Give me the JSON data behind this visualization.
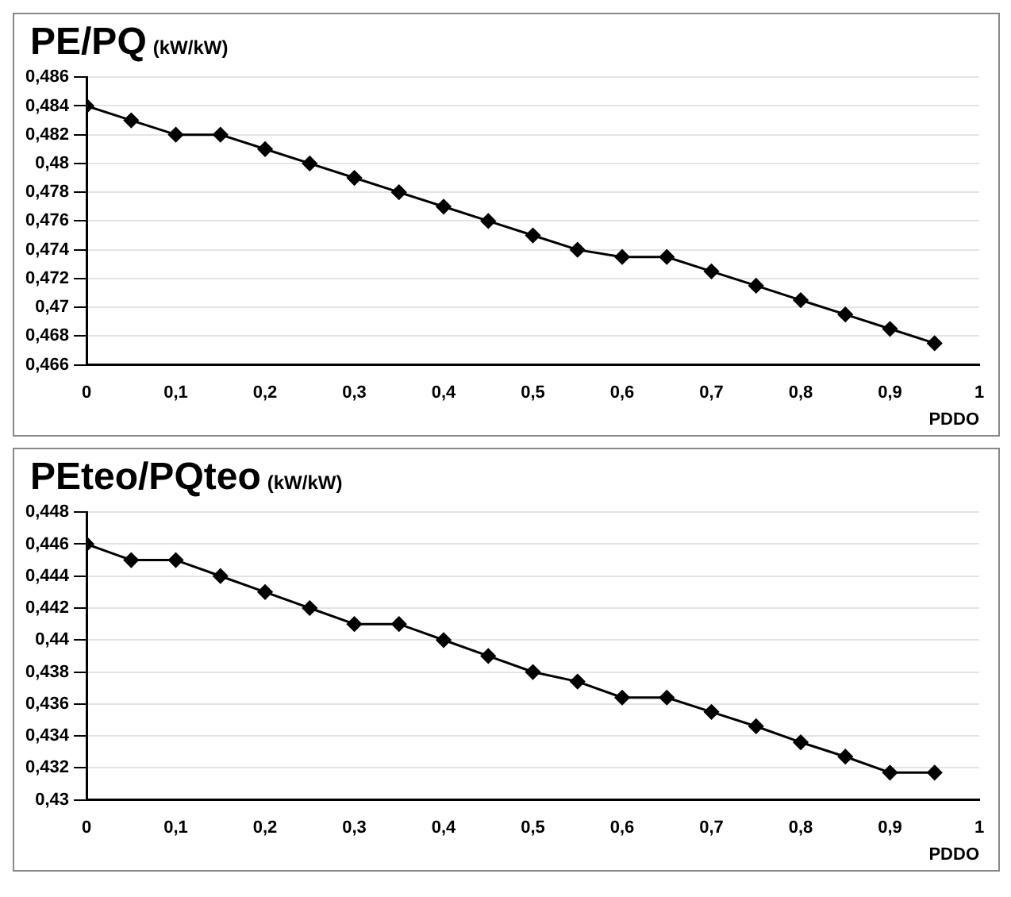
{
  "chart_data": [
    {
      "type": "line",
      "title": "PE/PQ",
      "ylabel": "(kW/kW)",
      "xlabel": "PDDO",
      "x": [
        0,
        0.05,
        0.1,
        0.15,
        0.2,
        0.25,
        0.3,
        0.35,
        0.4,
        0.45,
        0.5,
        0.55,
        0.6,
        0.65,
        0.7,
        0.75,
        0.8,
        0.85,
        0.9,
        0.95
      ],
      "series": [
        {
          "color": "#000000",
          "values": [
            0.484,
            0.483,
            0.482,
            0.482,
            0.481,
            0.48,
            0.479,
            0.478,
            0.477,
            0.476,
            0.475,
            0.474,
            0.4735,
            0.4735,
            0.4725,
            0.4715,
            0.4705,
            0.4695,
            0.4685,
            0.4675
          ]
        }
      ],
      "xlim": [
        0,
        1
      ],
      "xticks": [
        {
          "value": 0,
          "label": "0"
        },
        {
          "value": 0.1,
          "label": "0,1"
        },
        {
          "value": 0.2,
          "label": "0,2"
        },
        {
          "value": 0.3,
          "label": "0,3"
        },
        {
          "value": 0.4,
          "label": "0,4"
        },
        {
          "value": 0.5,
          "label": "0,5"
        },
        {
          "value": 0.6,
          "label": "0,6"
        },
        {
          "value": 0.7,
          "label": "0,7"
        },
        {
          "value": 0.8,
          "label": "0,8"
        },
        {
          "value": 0.9,
          "label": "0,9"
        },
        {
          "value": 1,
          "label": "1"
        }
      ],
      "ylim": [
        0.466,
        0.486
      ],
      "yticks": [
        {
          "value": 0.466,
          "label": "0,466"
        },
        {
          "value": 0.468,
          "label": "0,468"
        },
        {
          "value": 0.47,
          "label": "0,47"
        },
        {
          "value": 0.472,
          "label": "0,472"
        },
        {
          "value": 0.474,
          "label": "0,474"
        },
        {
          "value": 0.476,
          "label": "0,476"
        },
        {
          "value": 0.478,
          "label": "0,478"
        },
        {
          "value": 0.48,
          "label": "0,48"
        },
        {
          "value": 0.482,
          "label": "0,482"
        },
        {
          "value": 0.484,
          "label": "0,484"
        },
        {
          "value": 0.486,
          "label": "0,486"
        }
      ],
      "grid": "y",
      "legend": false,
      "marker": "diamond",
      "line_style": "solid"
    },
    {
      "type": "line",
      "title": "PEteo/PQteo",
      "ylabel": "(kW/kW)",
      "xlabel": "PDDO",
      "x": [
        0,
        0.05,
        0.1,
        0.15,
        0.2,
        0.25,
        0.3,
        0.35,
        0.4,
        0.45,
        0.5,
        0.55,
        0.6,
        0.65,
        0.7,
        0.75,
        0.8,
        0.85,
        0.9,
        0.95
      ],
      "series": [
        {
          "color": "#000000",
          "values": [
            0.446,
            0.445,
            0.445,
            0.444,
            0.443,
            0.442,
            0.441,
            0.441,
            0.44,
            0.439,
            0.438,
            0.4374,
            0.4364,
            0.4364,
            0.4355,
            0.4346,
            0.4336,
            0.4327,
            0.4317,
            0.4317
          ]
        }
      ],
      "xlim": [
        0,
        1
      ],
      "xticks": [
        {
          "value": 0,
          "label": "0"
        },
        {
          "value": 0.1,
          "label": "0,1"
        },
        {
          "value": 0.2,
          "label": "0,2"
        },
        {
          "value": 0.3,
          "label": "0,3"
        },
        {
          "value": 0.4,
          "label": "0,4"
        },
        {
          "value": 0.5,
          "label": "0,5"
        },
        {
          "value": 0.6,
          "label": "0,6"
        },
        {
          "value": 0.7,
          "label": "0,7"
        },
        {
          "value": 0.8,
          "label": "0,8"
        },
        {
          "value": 0.9,
          "label": "0,9"
        },
        {
          "value": 1,
          "label": "1"
        }
      ],
      "ylim": [
        0.43,
        0.448
      ],
      "yticks": [
        {
          "value": 0.43,
          "label": "0,43"
        },
        {
          "value": 0.432,
          "label": "0,432"
        },
        {
          "value": 0.434,
          "label": "0,434"
        },
        {
          "value": 0.436,
          "label": "0,436"
        },
        {
          "value": 0.438,
          "label": "0,438"
        },
        {
          "value": 0.44,
          "label": "0,44"
        },
        {
          "value": 0.442,
          "label": "0,442"
        },
        {
          "value": 0.444,
          "label": "0,444"
        },
        {
          "value": 0.446,
          "label": "0,446"
        },
        {
          "value": 0.448,
          "label": "0,448"
        }
      ],
      "grid": "y",
      "legend": false,
      "marker": "diamond",
      "line_style": "solid"
    }
  ]
}
